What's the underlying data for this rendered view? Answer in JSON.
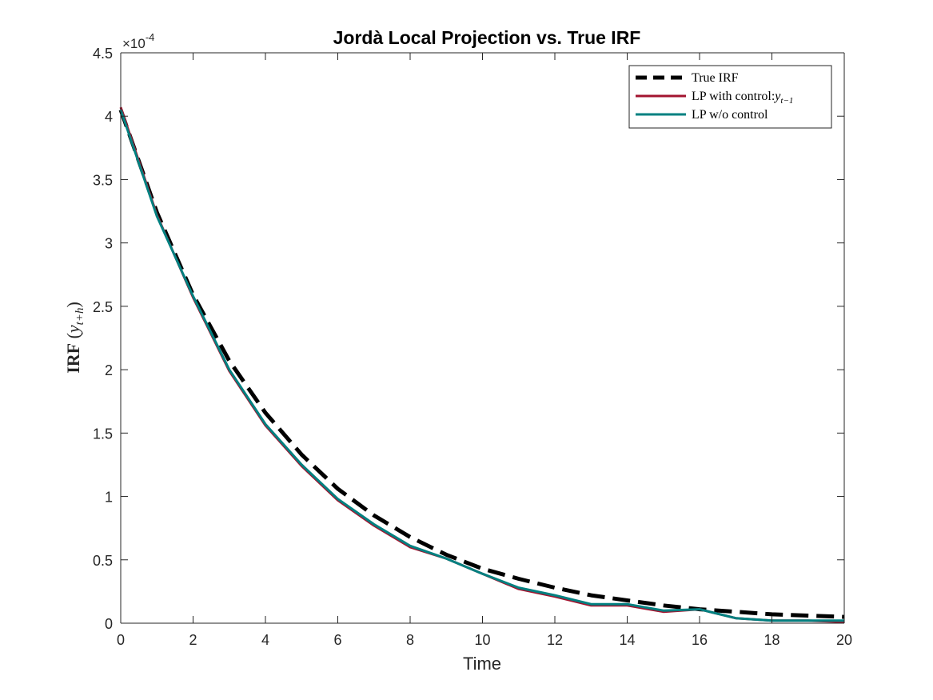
{
  "chart_data": {
    "type": "line",
    "title": "Jordà Local Projection vs. True IRF",
    "xlabel": "Time",
    "ylabel": {
      "main": "IRF",
      "sub_base": "y",
      "sub_script": "t+h"
    },
    "xlim": [
      0,
      20
    ],
    "ylim": [
      0,
      4.5
    ],
    "y_exponent": "-4",
    "x_ticks": [
      0,
      2,
      4,
      6,
      8,
      10,
      12,
      14,
      16,
      18,
      20
    ],
    "y_ticks": [
      0,
      0.5,
      1,
      1.5,
      2,
      2.5,
      3,
      3.5,
      4,
      4.5
    ],
    "x_tick_labels": [
      "0",
      "2",
      "4",
      "6",
      "8",
      "10",
      "12",
      "14",
      "16",
      "18",
      "20"
    ],
    "y_tick_labels": [
      "0",
      "0.5",
      "1",
      "1.5",
      "2",
      "2.5",
      "3",
      "3.5",
      "4",
      "4.5"
    ],
    "grid": false,
    "legend_position": "top-right",
    "x": [
      0,
      1,
      2,
      3,
      4,
      5,
      6,
      7,
      8,
      9,
      10,
      11,
      12,
      13,
      14,
      15,
      16,
      17,
      18,
      19,
      20
    ],
    "series": [
      {
        "name": "True IRF",
        "color": "#000000",
        "style": "dashed",
        "values": [
          4.05,
          3.24,
          2.59,
          2.07,
          1.66,
          1.33,
          1.06,
          0.85,
          0.68,
          0.54,
          0.43,
          0.35,
          0.28,
          0.22,
          0.18,
          0.14,
          0.11,
          0.09,
          0.07,
          0.06,
          0.05
        ]
      },
      {
        "name": "LP with control:",
        "legend_math": {
          "base": "y",
          "sub": "t−1"
        },
        "color": "#A2142F",
        "style": "solid",
        "values": [
          4.07,
          3.22,
          2.57,
          1.99,
          1.56,
          1.24,
          0.97,
          0.77,
          0.6,
          0.51,
          0.39,
          0.27,
          0.21,
          0.14,
          0.14,
          0.09,
          0.11,
          0.04,
          0.02,
          0.02,
          0.01
        ]
      },
      {
        "name": "LP w/o control",
        "color": "#008080",
        "style": "solid",
        "values": [
          4.05,
          3.21,
          2.58,
          2.0,
          1.57,
          1.25,
          0.98,
          0.78,
          0.61,
          0.51,
          0.39,
          0.28,
          0.22,
          0.15,
          0.15,
          0.1,
          0.11,
          0.04,
          0.02,
          0.02,
          0.02
        ]
      }
    ]
  }
}
